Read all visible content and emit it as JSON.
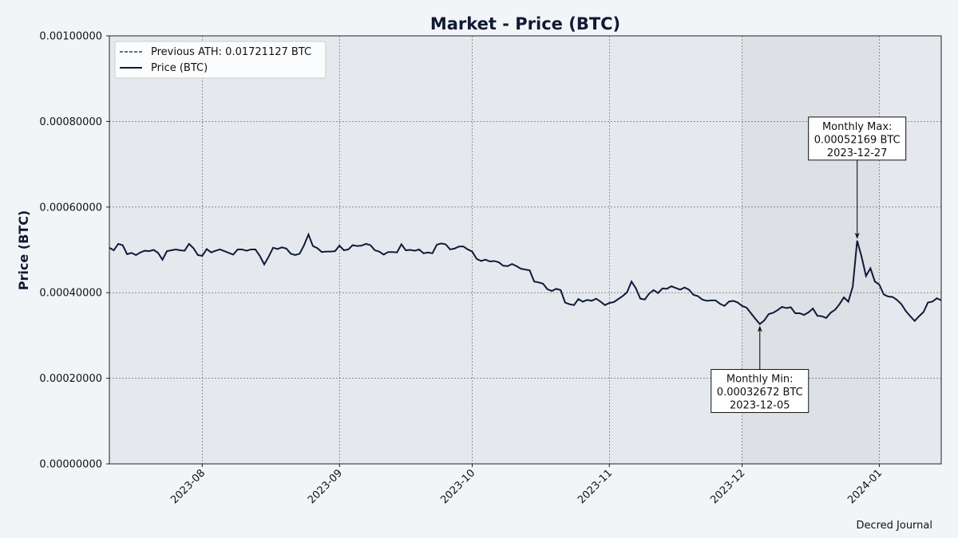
{
  "chart_data": {
    "type": "line",
    "title": "Market - Price (BTC)",
    "xlabel": "",
    "ylabel": "Price (BTC)",
    "ylim": [
      0,
      0.001
    ],
    "xlim": [
      "2023-07-11",
      "2024-01-15"
    ],
    "y_ticks": [
      "0.00000000",
      "0.00020000",
      "0.00040000",
      "0.00060000",
      "0.00080000",
      "0.00100000"
    ],
    "x_ticks": [
      "2023-08",
      "2023-09",
      "2023-10",
      "2023-11",
      "2023-12",
      "2024-01"
    ],
    "grid": true,
    "legend_position": "upper-left",
    "legend": [
      "Previous ATH: 0.01721127 BTC",
      "Price (BTC)"
    ],
    "highlight_month": {
      "start": "2023-12-01",
      "end": "2024-01-01"
    },
    "series": [
      {
        "name": "Price (BTC)",
        "color": "#0f1a3a",
        "points": [
          [
            "2023-07-11",
            0.000505
          ],
          [
            "2023-07-12",
            0.000499
          ],
          [
            "2023-07-13",
            0.000514
          ],
          [
            "2023-07-14",
            0.000511
          ],
          [
            "2023-07-15",
            0.00049
          ],
          [
            "2023-07-16",
            0.000493
          ],
          [
            "2023-07-17",
            0.000488
          ],
          [
            "2023-07-18",
            0.000494
          ],
          [
            "2023-07-19",
            0.000498
          ],
          [
            "2023-07-20",
            0.000497
          ],
          [
            "2023-07-21",
            0.0005
          ],
          [
            "2023-07-22",
            0.000493
          ],
          [
            "2023-07-23",
            0.000477
          ],
          [
            "2023-07-24",
            0.000497
          ],
          [
            "2023-07-25",
            0.000499
          ],
          [
            "2023-07-26",
            0.000501
          ],
          [
            "2023-07-27",
            0.000499
          ],
          [
            "2023-07-28",
            0.000498
          ],
          [
            "2023-07-29",
            0.000514
          ],
          [
            "2023-07-30",
            0.000504
          ],
          [
            "2023-07-31",
            0.000488
          ],
          [
            "2023-08-01",
            0.000486
          ],
          [
            "2023-08-02",
            0.000502
          ],
          [
            "2023-08-03",
            0.000494
          ],
          [
            "2023-08-04",
            0.000498
          ],
          [
            "2023-08-05",
            0.000501
          ],
          [
            "2023-08-06",
            0.000497
          ],
          [
            "2023-08-07",
            0.000493
          ],
          [
            "2023-08-08",
            0.000489
          ],
          [
            "2023-08-09",
            0.000501
          ],
          [
            "2023-08-10",
            0.000501
          ],
          [
            "2023-08-11",
            0.000498
          ],
          [
            "2023-08-12",
            0.000501
          ],
          [
            "2023-08-13",
            0.000501
          ],
          [
            "2023-08-14",
            0.000486
          ],
          [
            "2023-08-15",
            0.000466
          ],
          [
            "2023-08-16",
            0.000484
          ],
          [
            "2023-08-17",
            0.000505
          ],
          [
            "2023-08-18",
            0.000502
          ],
          [
            "2023-08-19",
            0.000506
          ],
          [
            "2023-08-20",
            0.000503
          ],
          [
            "2023-08-21",
            0.000491
          ],
          [
            "2023-08-22",
            0.000488
          ],
          [
            "2023-08-23",
            0.000491
          ],
          [
            "2023-08-24",
            0.000511
          ],
          [
            "2023-08-25",
            0.000536
          ],
          [
            "2023-08-26",
            0.000509
          ],
          [
            "2023-08-27",
            0.000504
          ],
          [
            "2023-08-28",
            0.000495
          ],
          [
            "2023-08-29",
            0.000496
          ],
          [
            "2023-08-30",
            0.000496
          ],
          [
            "2023-08-31",
            0.000497
          ],
          [
            "2023-09-01",
            0.00051
          ],
          [
            "2023-09-02",
            0.000499
          ],
          [
            "2023-09-03",
            0.000501
          ],
          [
            "2023-09-04",
            0.000511
          ],
          [
            "2023-09-05",
            0.000509
          ],
          [
            "2023-09-06",
            0.00051
          ],
          [
            "2023-09-07",
            0.000514
          ],
          [
            "2023-09-08",
            0.000511
          ],
          [
            "2023-09-09",
            0.000499
          ],
          [
            "2023-09-10",
            0.000496
          ],
          [
            "2023-09-11",
            0.000489
          ],
          [
            "2023-09-12",
            0.000495
          ],
          [
            "2023-09-13",
            0.000495
          ],
          [
            "2023-09-14",
            0.000494
          ],
          [
            "2023-09-15",
            0.000513
          ],
          [
            "2023-09-16",
            0.000499
          ],
          [
            "2023-09-17",
            0.0005
          ],
          [
            "2023-09-18",
            0.000498
          ],
          [
            "2023-09-19",
            0.000501
          ],
          [
            "2023-09-20",
            0.000492
          ],
          [
            "2023-09-21",
            0.000494
          ],
          [
            "2023-09-22",
            0.000492
          ],
          [
            "2023-09-23",
            0.000512
          ],
          [
            "2023-09-24",
            0.000515
          ],
          [
            "2023-09-25",
            0.000513
          ],
          [
            "2023-09-26",
            0.000501
          ],
          [
            "2023-09-27",
            0.000503
          ],
          [
            "2023-09-28",
            0.000508
          ],
          [
            "2023-09-29",
            0.000508
          ],
          [
            "2023-09-30",
            0.000501
          ],
          [
            "2023-10-01",
            0.000496
          ],
          [
            "2023-10-02",
            0.000479
          ],
          [
            "2023-10-03",
            0.000474
          ],
          [
            "2023-10-04",
            0.000477
          ],
          [
            "2023-10-05",
            0.000473
          ],
          [
            "2023-10-06",
            0.000474
          ],
          [
            "2023-10-07",
            0.000471
          ],
          [
            "2023-10-08",
            0.000463
          ],
          [
            "2023-10-09",
            0.000462
          ],
          [
            "2023-10-10",
            0.000467
          ],
          [
            "2023-10-11",
            0.000462
          ],
          [
            "2023-10-12",
            0.000456
          ],
          [
            "2023-10-13",
            0.000454
          ],
          [
            "2023-10-14",
            0.000452
          ],
          [
            "2023-10-15",
            0.000426
          ],
          [
            "2023-10-16",
            0.000424
          ],
          [
            "2023-10-17",
            0.000421
          ],
          [
            "2023-10-18",
            0.000408
          ],
          [
            "2023-10-19",
            0.000404
          ],
          [
            "2023-10-20",
            0.000409
          ],
          [
            "2023-10-21",
            0.000406
          ],
          [
            "2023-10-22",
            0.000377
          ],
          [
            "2023-10-23",
            0.000373
          ],
          [
            "2023-10-24",
            0.000371
          ],
          [
            "2023-10-25",
            0.000385
          ],
          [
            "2023-10-26",
            0.000379
          ],
          [
            "2023-10-27",
            0.000383
          ],
          [
            "2023-10-28",
            0.000381
          ],
          [
            "2023-10-29",
            0.000386
          ],
          [
            "2023-10-30",
            0.000379
          ],
          [
            "2023-10-31",
            0.000371
          ],
          [
            "2023-11-01",
            0.000376
          ],
          [
            "2023-11-02",
            0.000378
          ],
          [
            "2023-11-03",
            0.000385
          ],
          [
            "2023-11-04",
            0.000392
          ],
          [
            "2023-11-05",
            0.000401
          ],
          [
            "2023-11-06",
            0.000426
          ],
          [
            "2023-11-07",
            0.00041
          ],
          [
            "2023-11-08",
            0.000386
          ],
          [
            "2023-11-09",
            0.000384
          ],
          [
            "2023-11-10",
            0.000398
          ],
          [
            "2023-11-11",
            0.000406
          ],
          [
            "2023-11-12",
            0.000399
          ],
          [
            "2023-11-13",
            0.00041
          ],
          [
            "2023-11-14",
            0.000409
          ],
          [
            "2023-11-15",
            0.000415
          ],
          [
            "2023-11-16",
            0.000411
          ],
          [
            "2023-11-17",
            0.000407
          ],
          [
            "2023-11-18",
            0.000412
          ],
          [
            "2023-11-19",
            0.000407
          ],
          [
            "2023-11-20",
            0.000395
          ],
          [
            "2023-11-21",
            0.000392
          ],
          [
            "2023-11-22",
            0.000384
          ],
          [
            "2023-11-23",
            0.000381
          ],
          [
            "2023-11-24",
            0.000382
          ],
          [
            "2023-11-25",
            0.000382
          ],
          [
            "2023-11-26",
            0.000374
          ],
          [
            "2023-11-27",
            0.000369
          ],
          [
            "2023-11-28",
            0.000379
          ],
          [
            "2023-11-29",
            0.000381
          ],
          [
            "2023-11-30",
            0.000377
          ],
          [
            "2023-12-01",
            0.000369
          ],
          [
            "2023-12-02",
            0.000365
          ],
          [
            "2023-12-03",
            0.000352
          ],
          [
            "2023-12-04",
            0.000339
          ],
          [
            "2023-12-05",
            0.00032672
          ],
          [
            "2023-12-06",
            0.000335
          ],
          [
            "2023-12-07",
            0.00035
          ],
          [
            "2023-12-08",
            0.000353
          ],
          [
            "2023-12-09",
            0.000359
          ],
          [
            "2023-12-10",
            0.000367
          ],
          [
            "2023-12-11",
            0.000364
          ],
          [
            "2023-12-12",
            0.000366
          ],
          [
            "2023-12-13",
            0.000352
          ],
          [
            "2023-12-14",
            0.000352
          ],
          [
            "2023-12-15",
            0.000348
          ],
          [
            "2023-12-16",
            0.000354
          ],
          [
            "2023-12-17",
            0.000363
          ],
          [
            "2023-12-18",
            0.000346
          ],
          [
            "2023-12-19",
            0.000345
          ],
          [
            "2023-12-20",
            0.000341
          ],
          [
            "2023-12-21",
            0.000353
          ],
          [
            "2023-12-22",
            0.00036
          ],
          [
            "2023-12-23",
            0.000373
          ],
          [
            "2023-12-24",
            0.000389
          ],
          [
            "2023-12-25",
            0.000379
          ],
          [
            "2023-12-26",
            0.000414
          ],
          [
            "2023-12-27",
            0.00052169
          ],
          [
            "2023-12-28",
            0.000484
          ],
          [
            "2023-12-29",
            0.000439
          ],
          [
            "2023-12-30",
            0.000457
          ],
          [
            "2023-12-31",
            0.000426
          ],
          [
            "2024-01-01",
            0.000419
          ],
          [
            "2024-01-02",
            0.000396
          ],
          [
            "2024-01-03",
            0.000391
          ],
          [
            "2024-01-04",
            0.00039
          ],
          [
            "2024-01-05",
            0.000383
          ],
          [
            "2024-01-06",
            0.000373
          ],
          [
            "2024-01-07",
            0.000357
          ],
          [
            "2024-01-08",
            0.000345
          ],
          [
            "2024-01-09",
            0.000334
          ],
          [
            "2024-01-10",
            0.000345
          ],
          [
            "2024-01-11",
            0.000355
          ],
          [
            "2024-01-12",
            0.000377
          ],
          [
            "2024-01-13",
            0.000379
          ],
          [
            "2024-01-14",
            0.000387
          ],
          [
            "2024-01-15",
            0.000382
          ]
        ]
      }
    ],
    "annotations": [
      {
        "label": "Monthly Max:",
        "value": "0.00052169 BTC",
        "date": "2023-12-27",
        "x": "2023-12-27",
        "y": 0.00052169,
        "position": "above"
      },
      {
        "label": "Monthly Min:",
        "value": "0.00032672 BTC",
        "date": "2023-12-05",
        "x": "2023-12-05",
        "y": 0.00032672,
        "position": "below"
      }
    ]
  },
  "footer": {
    "credit": "Decred Journal"
  },
  "colors": {
    "page_bg": "#f2f5f7",
    "plot_bg": "#e5e9ed",
    "highlight_bg": "#dde0e5",
    "line": "#0f1a3a",
    "grid": "#555555"
  }
}
